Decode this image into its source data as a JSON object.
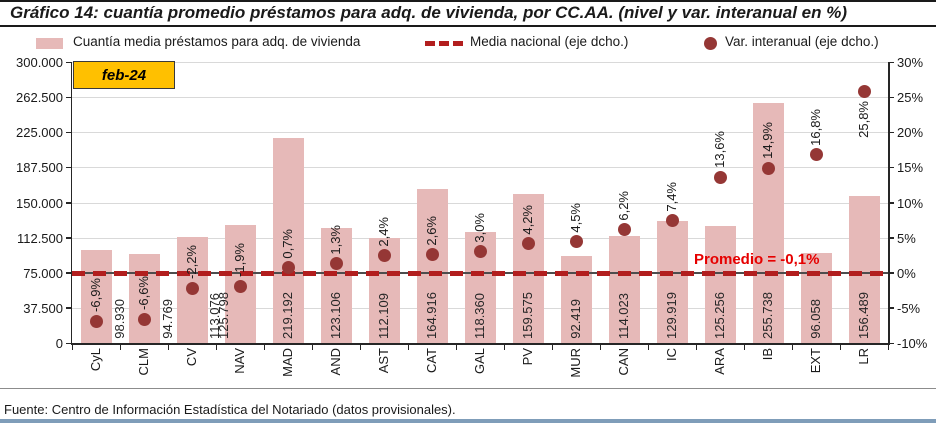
{
  "title": "Gráfico 14: cuantía promedio préstamos para adq. de vivienda, por CC.AA. (nivel y var. interanual en %)",
  "period_label": "feb-24",
  "legend": {
    "bars": "Cuantía media préstamos para adq. de vivienda",
    "line": "Media nacional (eje dcho.)",
    "dots": "Var. interanual (eje dcho.)"
  },
  "annotation": "Promedio = -0,1%",
  "footer": "Fuente: Centro de Información Estadística del Notariado (datos provisionales).",
  "colors": {
    "bar_fill": "#E6B9B8",
    "dot": "#953735",
    "dashed_line": "#B21E1E",
    "annotation_text": "#E60000",
    "period_box_fill": "#FFC000",
    "gridline": "#D9D9D9",
    "zero_line": "#4D4D4D",
    "axis": "#262626",
    "footer_bar": "#7F9DB9"
  },
  "chart_data": {
    "type": "combo: bar (left axis) + scatter (right axis) + dashed reference line",
    "categories": [
      "CyL",
      "CLM",
      "CV",
      "NAV",
      "MAD",
      "AND",
      "AST",
      "CAT",
      "GAL",
      "PV",
      "MUR",
      "CAN",
      "IC",
      "ARA",
      "IB",
      "EXT",
      "LR"
    ],
    "series": [
      {
        "name": "Cuantía media préstamos para adq. de vivienda",
        "type": "bar",
        "axis": "left",
        "values": [
          98930,
          94769,
          113076,
          125798,
          219192,
          123106,
          112109,
          164916,
          118360,
          159575,
          92419,
          114023,
          129919,
          125256,
          255738,
          96058,
          156489
        ],
        "labels": [
          "98.930",
          "94.769",
          "113.076",
          "125.798",
          "219.192",
          "123.106",
          "112.109",
          "164.916",
          "118.360",
          "159.575",
          "92.419",
          "114.023",
          "129.919",
          "125.256",
          "255.738",
          "96.058",
          "156.489"
        ]
      },
      {
        "name": "Var. interanual (eje dcho.)",
        "type": "scatter",
        "axis": "right",
        "values": [
          -6.9,
          -6.6,
          -2.2,
          -1.9,
          0.7,
          1.3,
          2.4,
          2.6,
          3.0,
          4.2,
          4.5,
          6.2,
          7.4,
          13.6,
          14.9,
          16.8,
          25.8
        ],
        "labels": [
          "-6,9%",
          "-6,6%",
          "-2,2%",
          "-1,9%",
          "0,7%",
          "1,3%",
          "2,4%",
          "2,6%",
          "3,0%",
          "4,2%",
          "4,5%",
          "6,2%",
          "7,4%",
          "13,6%",
          "14,9%",
          "16,8%",
          "25,8%"
        ]
      },
      {
        "name": "Media nacional (eje dcho.)",
        "type": "dashed-line",
        "axis": "right",
        "value": -0.1
      }
    ],
    "left_axis": {
      "min": 0,
      "max": 300000,
      "step": 37500,
      "tick_labels": [
        "300.000",
        "262.500",
        "225.000",
        "187.500",
        "150.000",
        "112.500",
        "75.000",
        "37.500",
        "0"
      ]
    },
    "right_axis": {
      "min": -10,
      "max": 30,
      "step": 5,
      "tick_labels": [
        "30%",
        "25%",
        "20%",
        "15%",
        "10%",
        "5%",
        "0%",
        "-5%",
        "-10%"
      ]
    },
    "grid": true,
    "legend_position": "top"
  }
}
